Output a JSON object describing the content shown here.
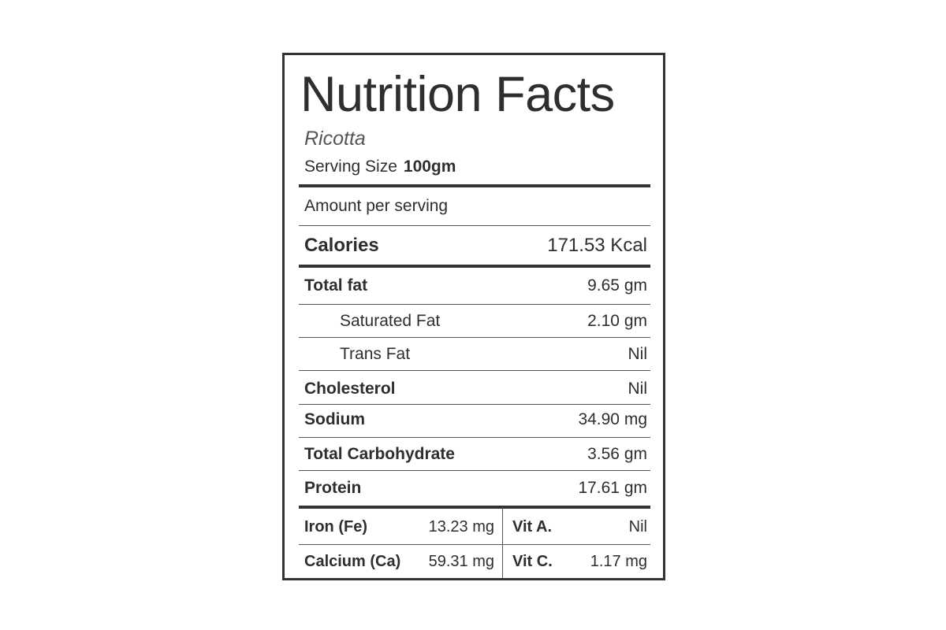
{
  "title": "Nutrition Facts",
  "food": "Ricotta",
  "serving": {
    "label": "Serving Size",
    "value": "100gm"
  },
  "amount_label": "Amount per serving",
  "calories": {
    "label": "Calories",
    "value": "171.53 Kcal"
  },
  "nutrients": [
    {
      "label": "Total fat",
      "value": "9.65 gm"
    },
    {
      "label": "Saturated Fat",
      "value": "2.10 gm"
    },
    {
      "label": "Trans Fat",
      "value": "Nil"
    },
    {
      "label": "Cholesterol",
      "value": "Nil"
    },
    {
      "label": "Sodium",
      "value": "34.90 mg"
    },
    {
      "label": "Total Carbohydrate",
      "value": "3.56 gm"
    },
    {
      "label": "Protein",
      "value": "17.61 gm"
    }
  ],
  "minerals": [
    {
      "label": "Iron (Fe)",
      "value": "13.23 mg"
    },
    {
      "label": "Calcium (Ca)",
      "value": "59.31 mg"
    }
  ],
  "vitamins": [
    {
      "label": "Vit A.",
      "value": "Nil"
    },
    {
      "label": "Vit C.",
      "value": "1.17 mg"
    }
  ],
  "colors": {
    "text": "#2e2e2e",
    "border": "#333333"
  }
}
